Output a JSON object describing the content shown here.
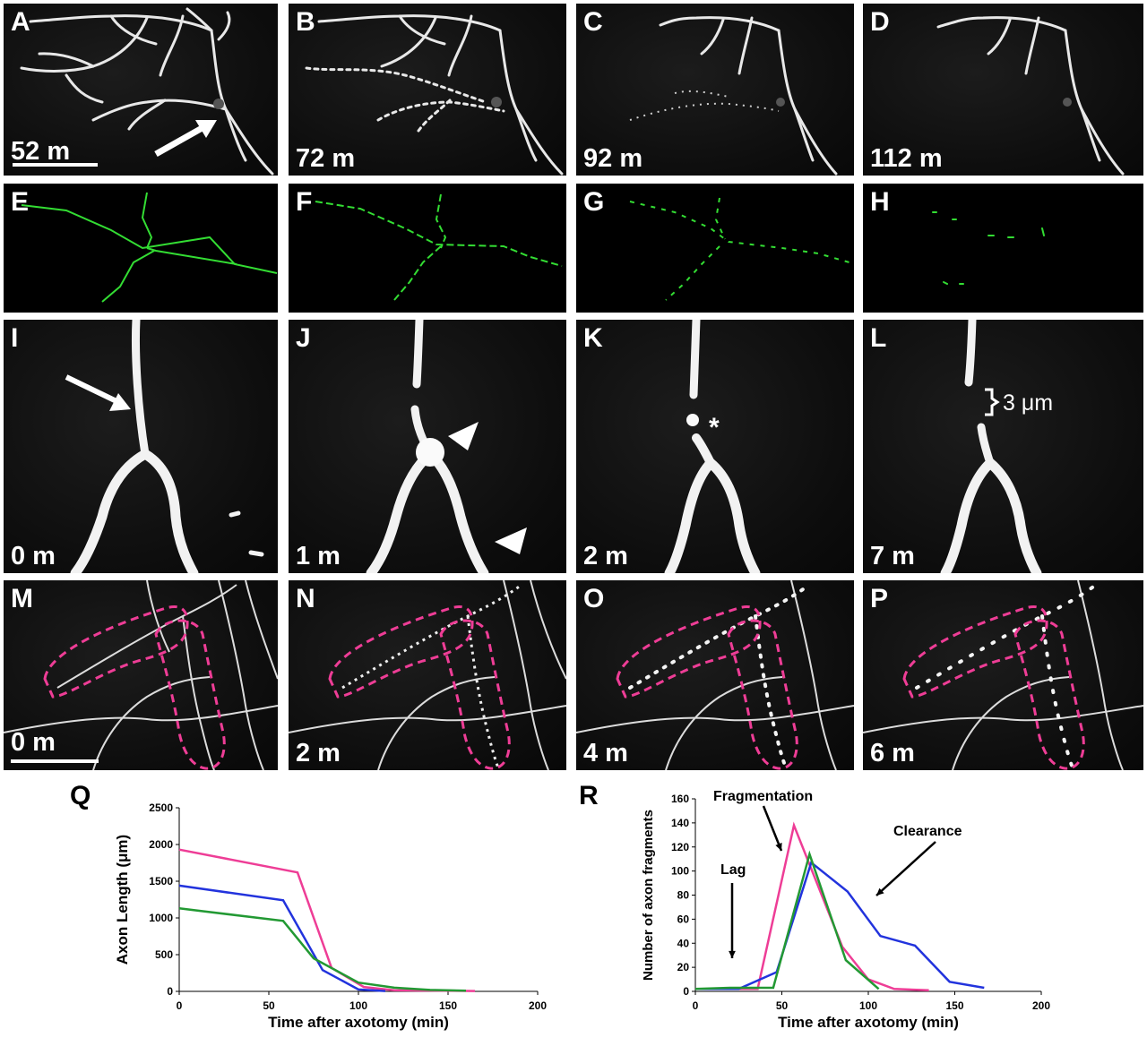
{
  "panels": {
    "A": {
      "label": "A",
      "time": "52 m"
    },
    "B": {
      "label": "B",
      "time": "72 m"
    },
    "C": {
      "label": "C",
      "time": "92 m"
    },
    "D": {
      "label": "D",
      "time": "112 m"
    },
    "E": {
      "label": "E"
    },
    "F": {
      "label": "F"
    },
    "G": {
      "label": "G"
    },
    "H": {
      "label": "H"
    },
    "I": {
      "label": "I",
      "time": "0 m"
    },
    "J": {
      "label": "J",
      "time": "1 m"
    },
    "K": {
      "label": "K",
      "time": "2 m"
    },
    "L": {
      "label": "L",
      "time": "7 m"
    },
    "M": {
      "label": "M",
      "time": "0 m"
    },
    "N": {
      "label": "N",
      "time": "2 m"
    },
    "O": {
      "label": "O",
      "time": "4 m"
    },
    "P": {
      "label": "P",
      "time": "6 m"
    }
  },
  "annotations": {
    "K_marker": "*",
    "L_gap": "3 μm",
    "trace_color": "#33dd33",
    "outline_color": "#ee3d96"
  },
  "chart_data": [
    {
      "panel_label": "Q",
      "type": "line",
      "xlabel": "Time after axotomy (min)",
      "ylabel": "Axon Length (μm)",
      "xlim": [
        0,
        200
      ],
      "ylim": [
        0,
        2500
      ],
      "xticks": [
        0,
        50,
        100,
        150,
        200
      ],
      "yticks": [
        0,
        500,
        1000,
        1500,
        2000,
        2500
      ],
      "grid": false,
      "series": [
        {
          "color": "#ee3d96",
          "points": [
            [
              0,
              1930
            ],
            [
              66,
              1620
            ],
            [
              85,
              320
            ],
            [
              103,
              60
            ],
            [
              120,
              15
            ],
            [
              165,
              5
            ]
          ]
        },
        {
          "color": "#2233dd",
          "points": [
            [
              0,
              1440
            ],
            [
              58,
              1240
            ],
            [
              80,
              290
            ],
            [
              100,
              25
            ],
            [
              115,
              5
            ]
          ]
        },
        {
          "color": "#229933",
          "points": [
            [
              0,
              1130
            ],
            [
              58,
              960
            ],
            [
              75,
              450
            ],
            [
              100,
              120
            ],
            [
              120,
              50
            ],
            [
              140,
              20
            ],
            [
              160,
              10
            ]
          ]
        }
      ]
    },
    {
      "panel_label": "R",
      "type": "line",
      "xlabel": "Time after axotomy (min)",
      "ylabel": "Number of axon fragments",
      "xlim": [
        0,
        200
      ],
      "ylim": [
        0,
        160
      ],
      "xticks": [
        0,
        50,
        100,
        150,
        200
      ],
      "yticks": [
        0,
        20,
        40,
        60,
        80,
        100,
        120,
        140,
        160
      ],
      "grid": false,
      "annotations": [
        "Fragmentation",
        "Clearance",
        "Lag"
      ],
      "series": [
        {
          "color": "#ee3d96",
          "points": [
            [
              0,
              2
            ],
            [
              36,
              2
            ],
            [
              57,
              138
            ],
            [
              85,
              37
            ],
            [
              100,
              10
            ],
            [
              115,
              2
            ],
            [
              135,
              1
            ]
          ]
        },
        {
          "color": "#2233dd",
          "points": [
            [
              0,
              2
            ],
            [
              25,
              2
            ],
            [
              47,
              16
            ],
            [
              67,
              107
            ],
            [
              88,
              83
            ],
            [
              107,
              46
            ],
            [
              127,
              38
            ],
            [
              147,
              8
            ],
            [
              167,
              3
            ]
          ]
        },
        {
          "color": "#229933",
          "points": [
            [
              0,
              2
            ],
            [
              20,
              3
            ],
            [
              45,
              3
            ],
            [
              66,
              114
            ],
            [
              87,
              26
            ],
            [
              106,
              2
            ]
          ]
        }
      ]
    }
  ]
}
